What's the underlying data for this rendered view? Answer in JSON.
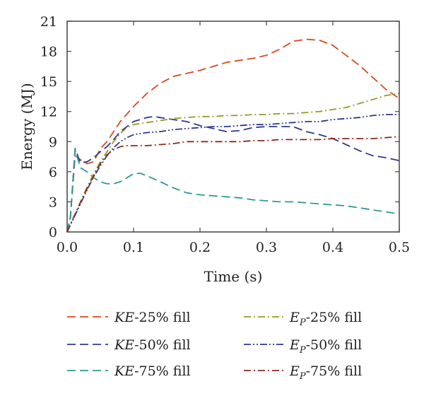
{
  "chart_data": {
    "type": "line",
    "title": "",
    "xlabel": "Time (s)",
    "ylabel": "Energy (MJ)",
    "xlim": [
      0,
      0.5
    ],
    "ylim": [
      0,
      21
    ],
    "xticks": [
      "0.0",
      "0.1",
      "0.2",
      "0.3",
      "0.4",
      "0.5"
    ],
    "yticks": [
      "0",
      "3",
      "6",
      "9",
      "12",
      "15",
      "18",
      "21"
    ],
    "grid": false,
    "legend_position": "bottom",
    "series": [
      {
        "name": "KE-25% fill",
        "legend_var": "KE",
        "legend_sub": "",
        "legend_rest": "-25% fill",
        "color": "#d9491f",
        "dash": "dashed",
        "x": [
          0,
          0.005,
          0.012,
          0.02,
          0.03,
          0.04,
          0.05,
          0.06,
          0.07,
          0.08,
          0.1,
          0.12,
          0.14,
          0.16,
          0.18,
          0.2,
          0.22,
          0.24,
          0.26,
          0.28,
          0.3,
          0.32,
          0.34,
          0.36,
          0.38,
          0.4,
          0.42,
          0.44,
          0.46,
          0.48,
          0.5
        ],
        "y": [
          0,
          1.5,
          7.6,
          7.2,
          6.8,
          7.0,
          8.3,
          9.0,
          10.0,
          11.0,
          12.5,
          13.8,
          14.8,
          15.5,
          15.8,
          16.1,
          16.5,
          16.9,
          17.1,
          17.3,
          17.6,
          18.2,
          19.0,
          19.2,
          19.1,
          18.6,
          17.6,
          16.6,
          15.4,
          14.2,
          13.3
        ]
      },
      {
        "name": "KE-50% fill",
        "legend_var": "KE",
        "legend_sub": "",
        "legend_rest": "-50% fill",
        "color": "#2e3a8f",
        "dash": "dashed",
        "x": [
          0,
          0.005,
          0.012,
          0.02,
          0.03,
          0.04,
          0.05,
          0.06,
          0.07,
          0.08,
          0.1,
          0.12,
          0.13,
          0.14,
          0.16,
          0.18,
          0.2,
          0.22,
          0.24,
          0.26,
          0.28,
          0.3,
          0.32,
          0.34,
          0.36,
          0.38,
          0.4,
          0.42,
          0.44,
          0.46,
          0.48,
          0.5
        ],
        "y": [
          0,
          1.5,
          8.3,
          6.9,
          7.0,
          7.4,
          8.0,
          8.5,
          9.2,
          10.0,
          11.0,
          11.4,
          11.5,
          11.4,
          11.2,
          11.0,
          10.6,
          10.3,
          10.0,
          10.1,
          10.4,
          10.5,
          10.5,
          10.5,
          10.0,
          9.7,
          9.3,
          8.7,
          8.1,
          7.6,
          7.4,
          7.1
        ]
      },
      {
        "name": "KE-75% fill",
        "legend_var": "KE",
        "legend_sub": "",
        "legend_rest": "-75% fill",
        "color": "#2a9a93",
        "dash": "dashed",
        "x": [
          0,
          0.005,
          0.012,
          0.02,
          0.03,
          0.04,
          0.05,
          0.06,
          0.07,
          0.08,
          0.09,
          0.1,
          0.11,
          0.12,
          0.14,
          0.16,
          0.18,
          0.2,
          0.22,
          0.24,
          0.26,
          0.28,
          0.3,
          0.32,
          0.34,
          0.36,
          0.38,
          0.4,
          0.42,
          0.44,
          0.46,
          0.48,
          0.5
        ],
        "y": [
          0,
          1.5,
          8.2,
          6.4,
          6.0,
          5.4,
          5.0,
          4.8,
          4.8,
          5.0,
          5.4,
          5.8,
          5.85,
          5.6,
          5.0,
          4.4,
          3.9,
          3.7,
          3.6,
          3.5,
          3.4,
          3.2,
          3.1,
          3.0,
          3.0,
          2.9,
          2.8,
          2.7,
          2.6,
          2.4,
          2.2,
          2.0,
          1.8
        ]
      },
      {
        "name": "Ep-25% fill",
        "legend_var": "E",
        "legend_sub": "P",
        "legend_rest": "-25% fill",
        "color": "#9a9a24",
        "dash": "dashdot",
        "x": [
          0,
          0.01,
          0.02,
          0.03,
          0.04,
          0.05,
          0.06,
          0.07,
          0.08,
          0.09,
          0.1,
          0.12,
          0.14,
          0.16,
          0.18,
          0.2,
          0.22,
          0.24,
          0.26,
          0.28,
          0.3,
          0.32,
          0.34,
          0.36,
          0.38,
          0.4,
          0.42,
          0.44,
          0.46,
          0.48,
          0.5
        ],
        "y": [
          0,
          1.5,
          3.0,
          4.5,
          5.8,
          7.0,
          8.0,
          9.0,
          9.8,
          10.4,
          10.7,
          10.9,
          11.1,
          11.3,
          11.4,
          11.5,
          11.5,
          11.6,
          11.6,
          11.7,
          11.7,
          11.8,
          11.8,
          11.9,
          12.0,
          12.2,
          12.4,
          12.8,
          13.2,
          13.6,
          13.8
        ]
      },
      {
        "name": "Ep-50% fill",
        "legend_var": "E",
        "legend_sub": "P",
        "legend_rest": "-50% fill",
        "color": "#2e3a8f",
        "dash": "dashdotdot",
        "x": [
          0,
          0.01,
          0.02,
          0.03,
          0.04,
          0.05,
          0.06,
          0.07,
          0.08,
          0.09,
          0.1,
          0.12,
          0.14,
          0.16,
          0.18,
          0.2,
          0.22,
          0.24,
          0.26,
          0.28,
          0.3,
          0.32,
          0.34,
          0.36,
          0.38,
          0.4,
          0.42,
          0.44,
          0.46,
          0.48,
          0.5
        ],
        "y": [
          0,
          1.4,
          2.8,
          4.2,
          5.5,
          6.6,
          7.6,
          8.4,
          9.0,
          9.4,
          9.7,
          9.9,
          10.0,
          10.2,
          10.3,
          10.4,
          10.5,
          10.5,
          10.6,
          10.7,
          10.7,
          10.8,
          10.9,
          11.0,
          11.0,
          11.2,
          11.3,
          11.4,
          11.6,
          11.7,
          11.7
        ]
      },
      {
        "name": "Ep-75% fill",
        "legend_var": "E",
        "legend_sub": "P",
        "legend_rest": "-75% fill",
        "color": "#8e2a1c",
        "dash": "dashdot",
        "x": [
          0,
          0.01,
          0.02,
          0.03,
          0.04,
          0.05,
          0.06,
          0.07,
          0.08,
          0.09,
          0.1,
          0.12,
          0.14,
          0.16,
          0.18,
          0.2,
          0.22,
          0.24,
          0.26,
          0.28,
          0.3,
          0.32,
          0.34,
          0.36,
          0.38,
          0.4,
          0.42,
          0.44,
          0.46,
          0.48,
          0.5
        ],
        "y": [
          0,
          1.5,
          2.9,
          4.3,
          5.6,
          6.8,
          7.7,
          8.2,
          8.5,
          8.6,
          8.6,
          8.6,
          8.7,
          8.8,
          9.0,
          9.0,
          9.0,
          9.0,
          9.0,
          9.1,
          9.1,
          9.2,
          9.2,
          9.2,
          9.2,
          9.3,
          9.3,
          9.3,
          9.3,
          9.4,
          9.5
        ]
      }
    ]
  }
}
